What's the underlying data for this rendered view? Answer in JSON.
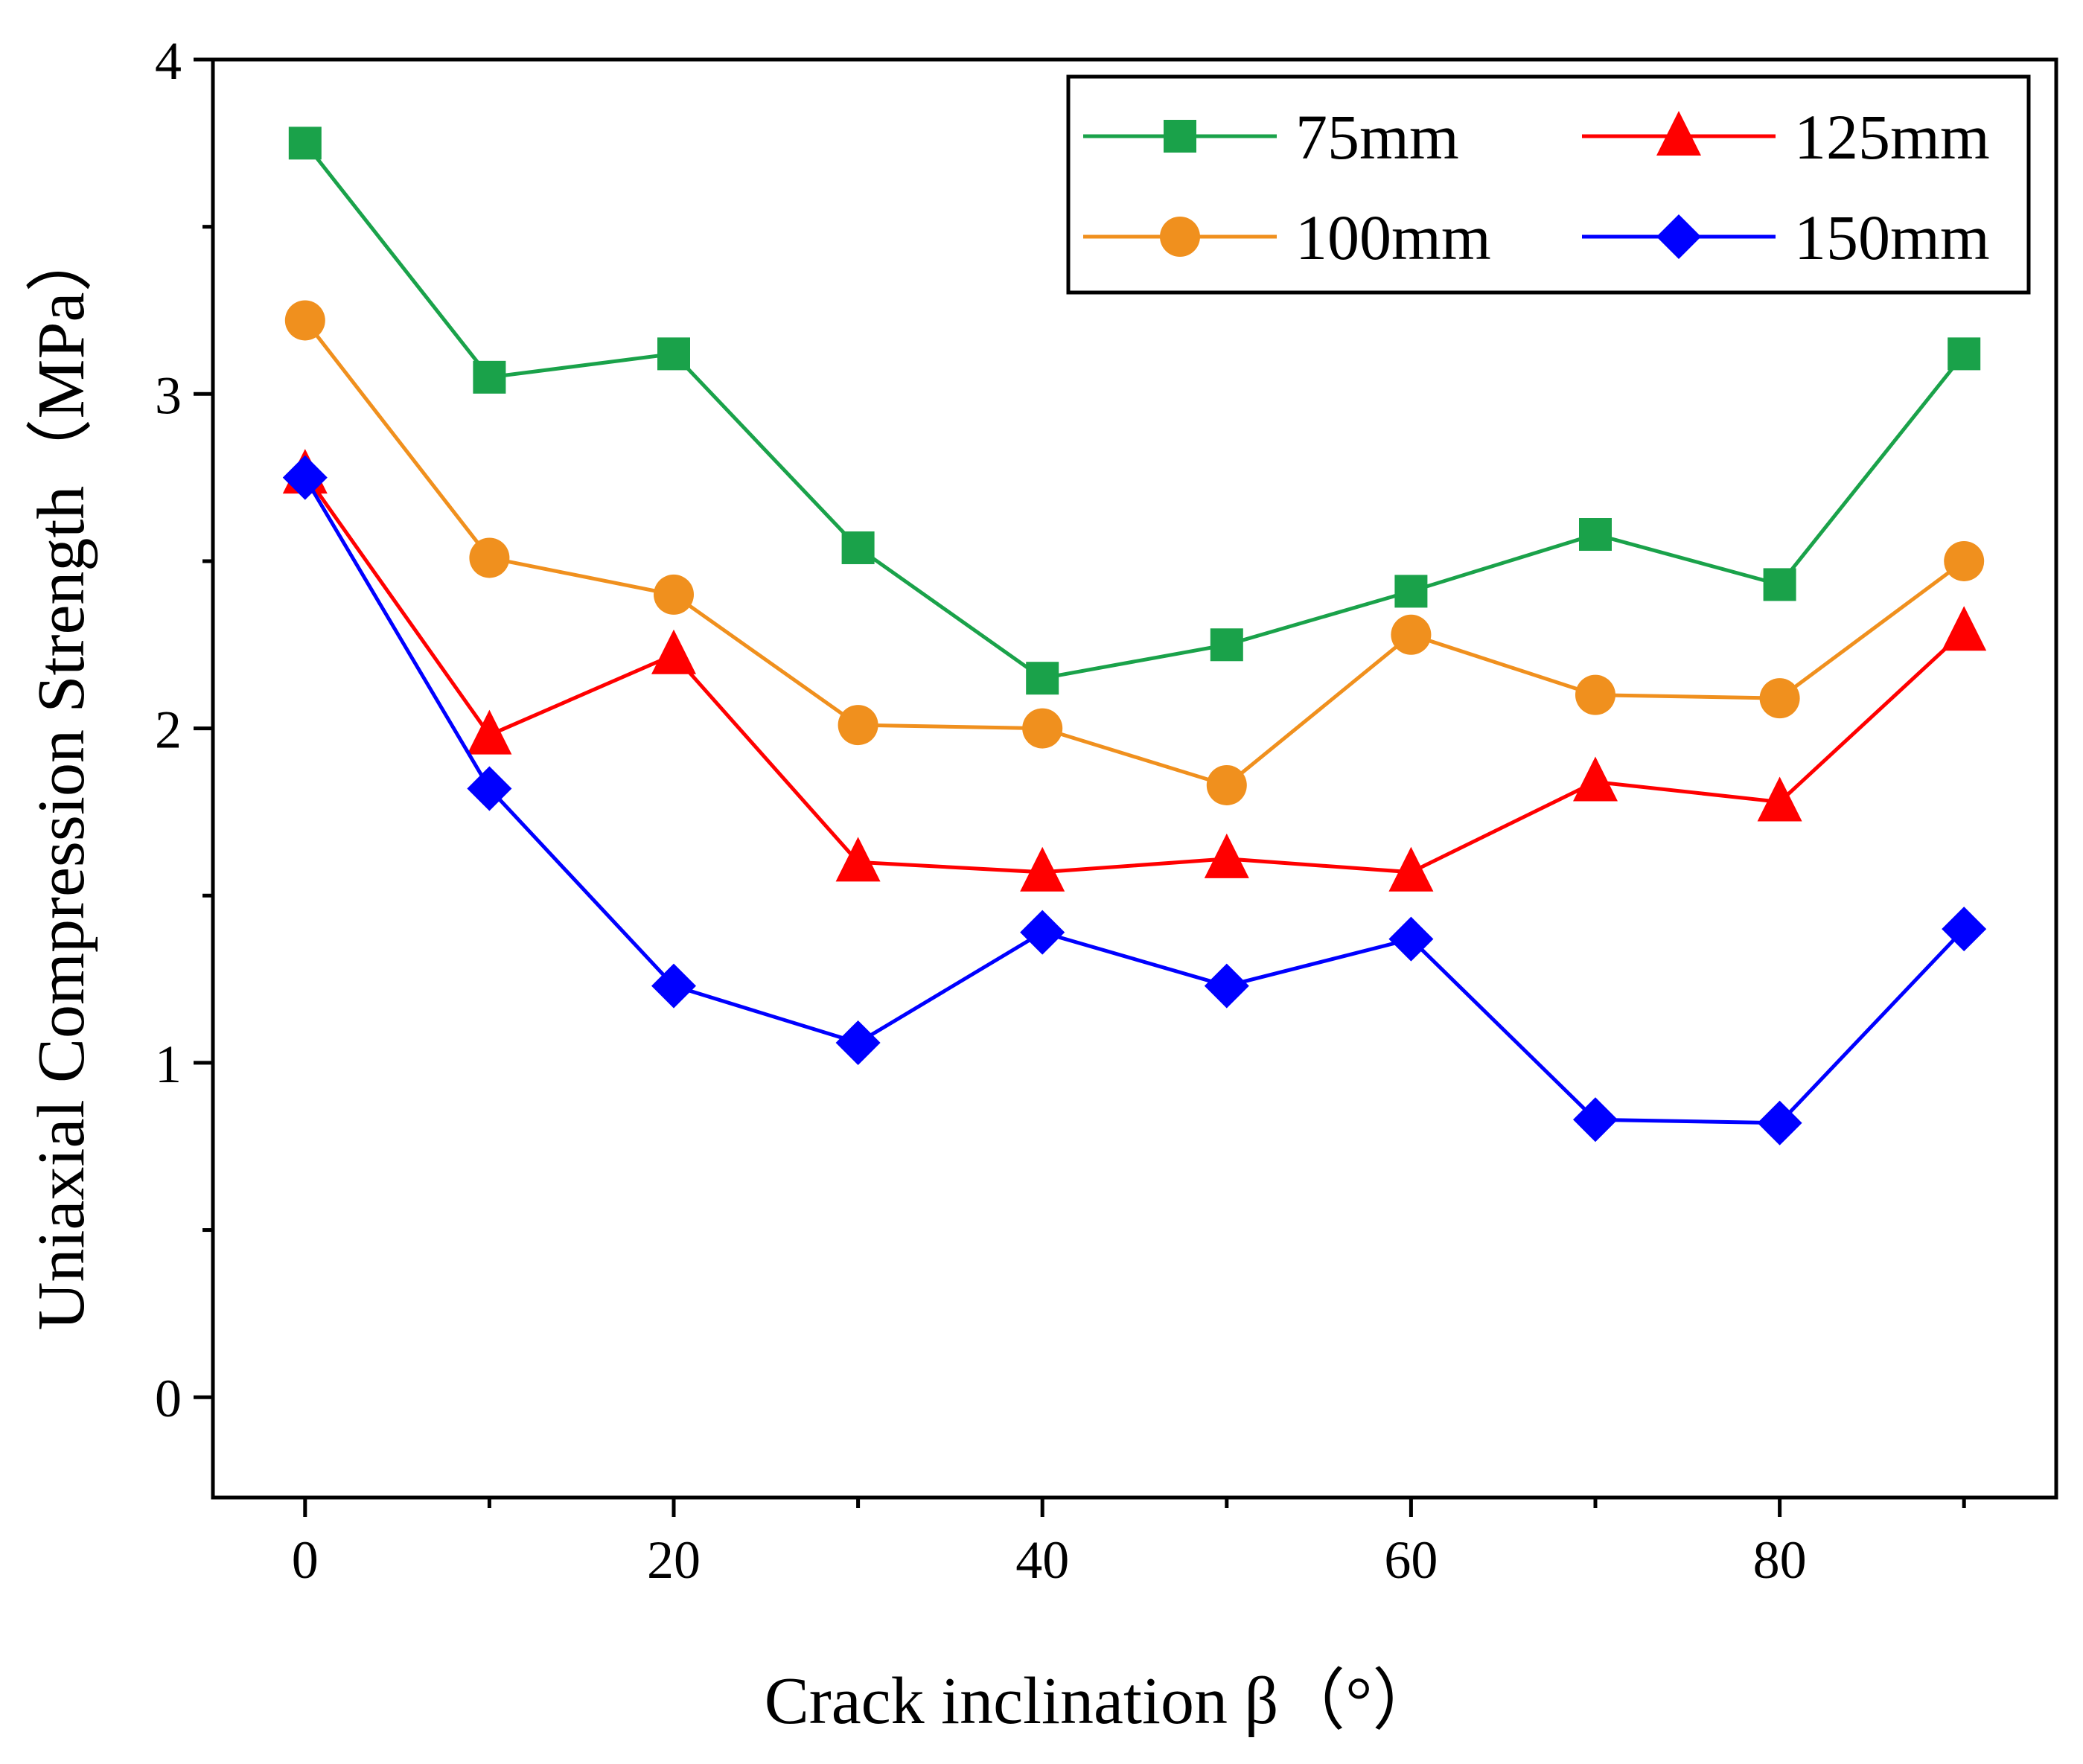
{
  "chart_data": {
    "type": "line",
    "title": "",
    "xlabel": "Crack inclination β（°）",
    "ylabel": "Uniaxial Compression Strength（MPa）",
    "xlim": [
      -5,
      95
    ],
    "ylim": [
      -0.3,
      4.0
    ],
    "x_ticks": [
      0,
      20,
      40,
      60,
      80
    ],
    "y_ticks": [
      0,
      1,
      2,
      3,
      4
    ],
    "x_ticklabels": [
      "0",
      "20",
      "40",
      "60",
      "80"
    ],
    "y_ticklabels": [
      "0",
      "1",
      "2",
      "3",
      "4"
    ],
    "x_minor_ticks": [
      10,
      30,
      50,
      70,
      90
    ],
    "y_minor_ticks": [
      0.5,
      1.5,
      2.5,
      3.5
    ],
    "grid": false,
    "legend_position": "top-right",
    "x": [
      0,
      10,
      20,
      30,
      40,
      50,
      60,
      70,
      80,
      90
    ],
    "series": [
      {
        "name": "75mm",
        "color": "#1aa24a",
        "marker": "square",
        "values": [
          3.75,
          3.05,
          3.12,
          2.54,
          2.15,
          2.25,
          2.41,
          2.58,
          2.43,
          3.12
        ]
      },
      {
        "name": "100mm",
        "color": "#f0901e",
        "marker": "circle",
        "values": [
          3.22,
          2.51,
          2.4,
          2.01,
          2.0,
          1.83,
          2.28,
          2.1,
          2.09,
          2.5
        ]
      },
      {
        "name": "125mm",
        "color": "#ff0000",
        "marker": "triangle",
        "values": [
          2.76,
          1.98,
          2.22,
          1.6,
          1.57,
          1.61,
          1.57,
          1.84,
          1.78,
          2.29
        ]
      },
      {
        "name": "150mm",
        "color": "#0000ff",
        "marker": "diamond",
        "values": [
          2.75,
          1.82,
          1.23,
          1.06,
          1.39,
          1.23,
          1.37,
          0.83,
          0.82,
          1.4
        ]
      }
    ]
  }
}
